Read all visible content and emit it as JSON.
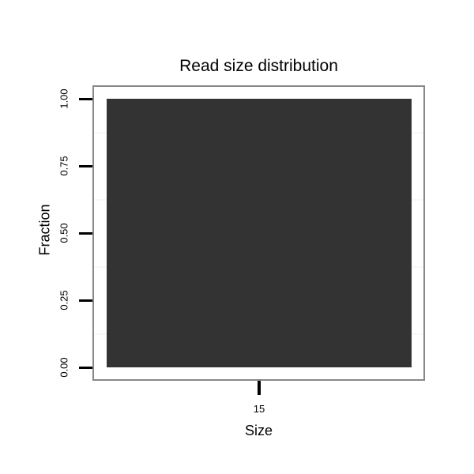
{
  "chart_data": {
    "type": "bar",
    "title": "Read size distribution",
    "xlabel": "Size",
    "ylabel": "Fraction",
    "categories": [
      "15"
    ],
    "values": [
      1.0
    ],
    "ylim": [
      0,
      1
    ],
    "ytick_labels": [
      "0.00",
      "0.25",
      "0.50",
      "0.75",
      "1.00"
    ],
    "xtick_labels": [
      "15"
    ],
    "legend": "none",
    "grid": "faint minor horizontal gridlines midway between y ticks",
    "colors": {
      "bar": "#333333",
      "panel_border": "#888888",
      "tick_mark": "#000000",
      "text": "#000000",
      "minor_grid": "#f8f8f8",
      "background": "#ffffff"
    }
  }
}
